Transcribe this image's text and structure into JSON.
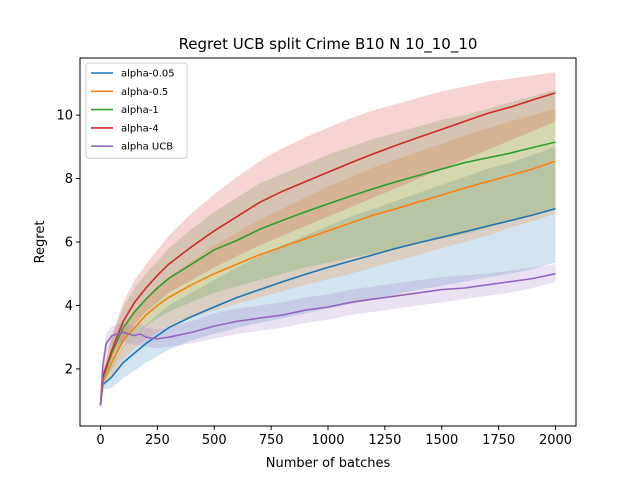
{
  "chart_data": {
    "type": "line",
    "title": "Regret UCB split Crime B10 N 10_10_10",
    "xlabel": "Number of batches",
    "ylabel": "Regret",
    "xlim": [
      -90,
      2090
    ],
    "ylim": [
      0.2,
      11.8
    ],
    "xticks": [
      0,
      250,
      500,
      750,
      1000,
      1250,
      1500,
      1750,
      2000
    ],
    "yticks": [
      2,
      4,
      6,
      8,
      10
    ],
    "grid": false,
    "legend_position": "top-left",
    "series": [
      {
        "name": "alpha-0.05",
        "color": "#1f77b4",
        "x": [
          0,
          10,
          50,
          100,
          150,
          200,
          250,
          300,
          400,
          500,
          600,
          700,
          800,
          900,
          1000,
          1100,
          1200,
          1300,
          1400,
          1500,
          1600,
          1700,
          1800,
          1900,
          2000
        ],
        "mean": [
          0.85,
          1.5,
          1.75,
          2.2,
          2.5,
          2.8,
          3.05,
          3.3,
          3.65,
          3.95,
          4.25,
          4.5,
          4.75,
          4.98,
          5.2,
          5.4,
          5.6,
          5.8,
          5.98,
          6.15,
          6.32,
          6.5,
          6.67,
          6.85,
          7.05
        ],
        "lower": [
          0.75,
          1.35,
          1.4,
          1.7,
          1.95,
          2.2,
          2.4,
          2.6,
          2.9,
          3.1,
          3.3,
          3.45,
          3.6,
          3.75,
          3.9,
          4.05,
          4.2,
          4.35,
          4.5,
          4.62,
          4.75,
          4.88,
          5.0,
          5.15,
          5.35
        ],
        "upper": [
          0.95,
          1.65,
          2.1,
          2.7,
          3.05,
          3.4,
          3.7,
          4.0,
          4.4,
          4.8,
          5.2,
          5.55,
          5.9,
          6.2,
          6.5,
          6.8,
          7.05,
          7.3,
          7.55,
          7.8,
          8.05,
          8.3,
          8.5,
          8.75,
          9.0
        ]
      },
      {
        "name": "alpha-0.5",
        "color": "#ff7f0e",
        "x": [
          0,
          10,
          50,
          100,
          150,
          200,
          250,
          300,
          400,
          500,
          600,
          700,
          800,
          900,
          1000,
          1100,
          1200,
          1300,
          1400,
          1500,
          1600,
          1700,
          1800,
          1900,
          2000
        ],
        "mean": [
          0.85,
          1.6,
          2.2,
          2.9,
          3.3,
          3.7,
          4.0,
          4.25,
          4.65,
          5.0,
          5.3,
          5.6,
          5.85,
          6.1,
          6.35,
          6.6,
          6.85,
          7.05,
          7.27,
          7.48,
          7.7,
          7.9,
          8.1,
          8.3,
          8.55
        ],
        "lower": [
          0.75,
          1.45,
          1.75,
          2.3,
          2.65,
          2.95,
          3.15,
          3.35,
          3.6,
          3.85,
          4.05,
          4.25,
          4.45,
          4.65,
          4.82,
          5.0,
          5.2,
          5.4,
          5.6,
          5.8,
          6.0,
          6.2,
          6.45,
          6.65,
          6.9
        ],
        "upper": [
          0.95,
          1.8,
          2.55,
          3.35,
          3.8,
          4.25,
          4.6,
          4.9,
          5.4,
          5.9,
          6.3,
          6.7,
          7.05,
          7.4,
          7.75,
          8.05,
          8.35,
          8.6,
          8.85,
          9.1,
          9.35,
          9.58,
          9.8,
          10.0,
          10.2
        ]
      },
      {
        "name": "alpha-1",
        "color": "#2ca02c",
        "x": [
          0,
          10,
          50,
          100,
          150,
          200,
          250,
          300,
          400,
          500,
          600,
          700,
          800,
          900,
          1000,
          1100,
          1200,
          1300,
          1400,
          1500,
          1600,
          1700,
          1800,
          1900,
          2000
        ],
        "mean": [
          0.85,
          1.7,
          2.5,
          3.3,
          3.8,
          4.2,
          4.55,
          4.85,
          5.3,
          5.75,
          6.05,
          6.4,
          6.68,
          6.95,
          7.2,
          7.45,
          7.68,
          7.9,
          8.1,
          8.3,
          8.5,
          8.65,
          8.8,
          8.98,
          9.15
        ],
        "lower": [
          0.75,
          1.5,
          2.0,
          2.65,
          3.05,
          3.35,
          3.6,
          3.8,
          4.1,
          4.4,
          4.6,
          4.8,
          5.0,
          5.2,
          5.35,
          5.5,
          5.65,
          5.8,
          5.95,
          6.1,
          6.25,
          6.45,
          6.65,
          6.85,
          7.05
        ],
        "upper": [
          0.95,
          1.9,
          3.0,
          3.95,
          4.55,
          5.0,
          5.4,
          5.8,
          6.4,
          6.95,
          7.4,
          7.85,
          8.15,
          8.45,
          8.75,
          9.0,
          9.25,
          9.45,
          9.65,
          9.85,
          10.0,
          10.2,
          10.4,
          10.6,
          10.8
        ]
      },
      {
        "name": "alpha-4",
        "color": "#d62728",
        "x": [
          0,
          10,
          50,
          100,
          150,
          200,
          250,
          300,
          400,
          500,
          600,
          700,
          800,
          900,
          1000,
          1100,
          1200,
          1300,
          1400,
          1500,
          1600,
          1700,
          1800,
          1900,
          2000
        ],
        "mean": [
          0.85,
          1.75,
          2.6,
          3.5,
          4.1,
          4.55,
          4.95,
          5.3,
          5.85,
          6.35,
          6.8,
          7.25,
          7.6,
          7.9,
          8.2,
          8.5,
          8.78,
          9.05,
          9.3,
          9.55,
          9.8,
          10.05,
          10.25,
          10.48,
          10.7
        ],
        "lower": [
          0.75,
          1.55,
          2.15,
          2.9,
          3.4,
          3.8,
          4.1,
          4.4,
          4.8,
          5.2,
          5.55,
          5.9,
          6.2,
          6.5,
          6.8,
          7.1,
          7.4,
          7.7,
          8.0,
          8.3,
          8.6,
          8.9,
          9.2,
          9.5,
          9.8
        ],
        "upper": [
          0.95,
          1.95,
          3.05,
          4.1,
          4.8,
          5.3,
          5.75,
          6.2,
          6.9,
          7.5,
          8.05,
          8.55,
          8.95,
          9.3,
          9.6,
          9.9,
          10.15,
          10.35,
          10.55,
          10.75,
          10.9,
          11.05,
          11.15,
          11.25,
          11.35
        ]
      },
      {
        "name": "alpha UCB",
        "color": "#9467bd",
        "x": [
          0,
          10,
          25,
          50,
          75,
          100,
          125,
          150,
          175,
          200,
          250,
          300,
          400,
          500,
          600,
          700,
          800,
          900,
          1000,
          1100,
          1200,
          1300,
          1400,
          1500,
          1600,
          1700,
          1800,
          1900,
          2000
        ],
        "mean": [
          0.85,
          2.1,
          2.8,
          3.05,
          3.1,
          3.15,
          3.1,
          3.05,
          3.1,
          3.0,
          2.95,
          3.0,
          3.15,
          3.35,
          3.5,
          3.6,
          3.7,
          3.85,
          3.95,
          4.1,
          4.2,
          4.3,
          4.4,
          4.5,
          4.55,
          4.65,
          4.75,
          4.85,
          5.0
        ],
        "lower": [
          0.7,
          1.8,
          2.5,
          2.75,
          2.8,
          2.85,
          2.8,
          2.75,
          2.75,
          2.7,
          2.65,
          2.7,
          2.8,
          2.95,
          3.1,
          3.2,
          3.3,
          3.45,
          3.55,
          3.7,
          3.8,
          3.9,
          4.0,
          4.1,
          4.2,
          4.3,
          4.4,
          4.55,
          4.75
        ],
        "upper": [
          1.0,
          2.4,
          3.1,
          3.35,
          3.4,
          3.45,
          3.4,
          3.35,
          3.45,
          3.3,
          3.25,
          3.3,
          3.5,
          3.75,
          3.9,
          4.0,
          4.1,
          4.25,
          4.35,
          4.5,
          4.6,
          4.7,
          4.8,
          4.9,
          4.95,
          5.0,
          5.1,
          5.2,
          5.3
        ]
      }
    ]
  }
}
